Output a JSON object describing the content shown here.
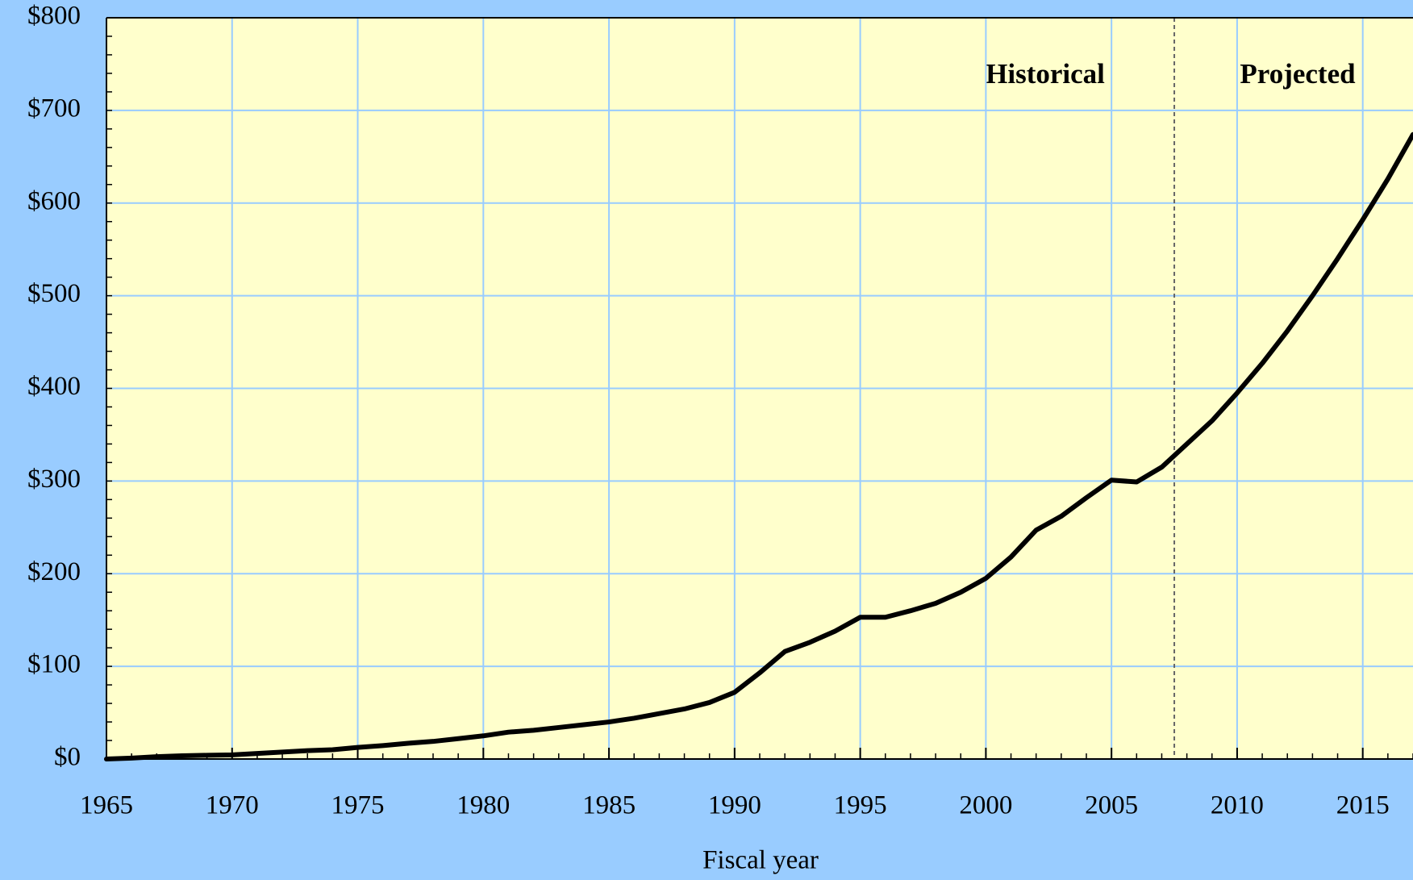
{
  "chart_data": {
    "type": "line",
    "x": [
      1965,
      1966,
      1967,
      1968,
      1969,
      1970,
      1971,
      1972,
      1973,
      1974,
      1975,
      1976,
      1977,
      1978,
      1979,
      1980,
      1981,
      1982,
      1983,
      1984,
      1985,
      1986,
      1987,
      1988,
      1989,
      1990,
      1991,
      1992,
      1993,
      1994,
      1995,
      1996,
      1997,
      1998,
      1999,
      2000,
      2001,
      2002,
      2003,
      2004,
      2005,
      2006,
      2007,
      2008,
      2009,
      2010,
      2011,
      2012,
      2013,
      2014,
      2015,
      2016,
      2017
    ],
    "series": [
      {
        "color": "#000000",
        "values": [
          0,
          1,
          2.5,
          3.5,
          4,
          4.5,
          6,
          7.5,
          9,
          10,
          12.5,
          14.5,
          17,
          19,
          22,
          25,
          29,
          31,
          34,
          37,
          40,
          44,
          49,
          54,
          61,
          72,
          93,
          116,
          126,
          138,
          153,
          153,
          160,
          168,
          180,
          195,
          218,
          247,
          262,
          282,
          301,
          299,
          315,
          340,
          365,
          395,
          427,
          462,
          500,
          540,
          582,
          626,
          674
        ]
      }
    ],
    "xlim": [
      1965,
      2017
    ],
    "ylim": [
      0,
      800
    ],
    "xticks": [
      1965,
      1970,
      1975,
      1980,
      1985,
      1990,
      1995,
      2000,
      2005,
      2010,
      2015
    ],
    "yticks": [
      {
        "value": 0,
        "label": "$0"
      },
      {
        "value": 100,
        "label": "$100"
      },
      {
        "value": 200,
        "label": "$200"
      },
      {
        "value": 300,
        "label": "$300"
      },
      {
        "value": 400,
        "label": "$400"
      },
      {
        "value": 500,
        "label": "$500"
      },
      {
        "value": 600,
        "label": "$600"
      },
      {
        "value": 700,
        "label": "$700"
      },
      {
        "value": 800,
        "label": "$800"
      }
    ],
    "x_label": "Fiscal year",
    "grid": true,
    "divider_x": 2007.5,
    "annotations": [
      "Historical",
      "Projected"
    ]
  }
}
